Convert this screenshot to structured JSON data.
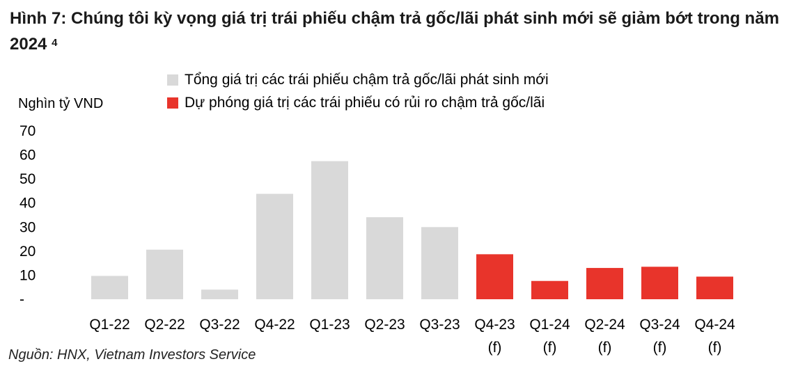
{
  "title": "Hình 7: Chúng tôi kỳ vọng giá trị trái phiếu chậm trả gốc/lãi phát sinh mới sẽ giảm bớt trong năm 2024",
  "title_superscript": "4",
  "source": "Nguồn: HNX, Vietnam Investors Service",
  "colors": {
    "actual": "#d9d9d9",
    "forecast": "#e8342b"
  },
  "chart_data": {
    "type": "bar",
    "ylabel": "Nghìn tỷ VND",
    "ylim": [
      0,
      70
    ],
    "yticks": [
      "-",
      "10",
      "20",
      "30",
      "40",
      "50",
      "60",
      "70"
    ],
    "categories": [
      "Q1-22",
      "Q2-22",
      "Q3-22",
      "Q4-22",
      "Q1-23",
      "Q2-23",
      "Q3-23",
      "Q4-23",
      "Q1-24",
      "Q2-24",
      "Q3-24",
      "Q4-24"
    ],
    "category_sublabels": [
      "",
      "",
      "",
      "",
      "",
      "",
      "",
      "(f)",
      "(f)",
      "(f)",
      "(f)",
      "(f)"
    ],
    "series": [
      {
        "name": "Tổng giá trị các trái phiếu chậm trả gốc/lãi phát sinh mới",
        "values": [
          9.7,
          20.6,
          4.0,
          43.8,
          57.4,
          34.1,
          30.0,
          null,
          null,
          null,
          null,
          null
        ]
      },
      {
        "name": "Dự phóng giá trị các trái phiếu có rủi ro chậm trả gốc/lãi",
        "values": [
          null,
          null,
          null,
          null,
          null,
          null,
          null,
          18.7,
          7.6,
          13.0,
          13.5,
          9.4
        ]
      }
    ],
    "grid": false,
    "legend_position": "top"
  }
}
